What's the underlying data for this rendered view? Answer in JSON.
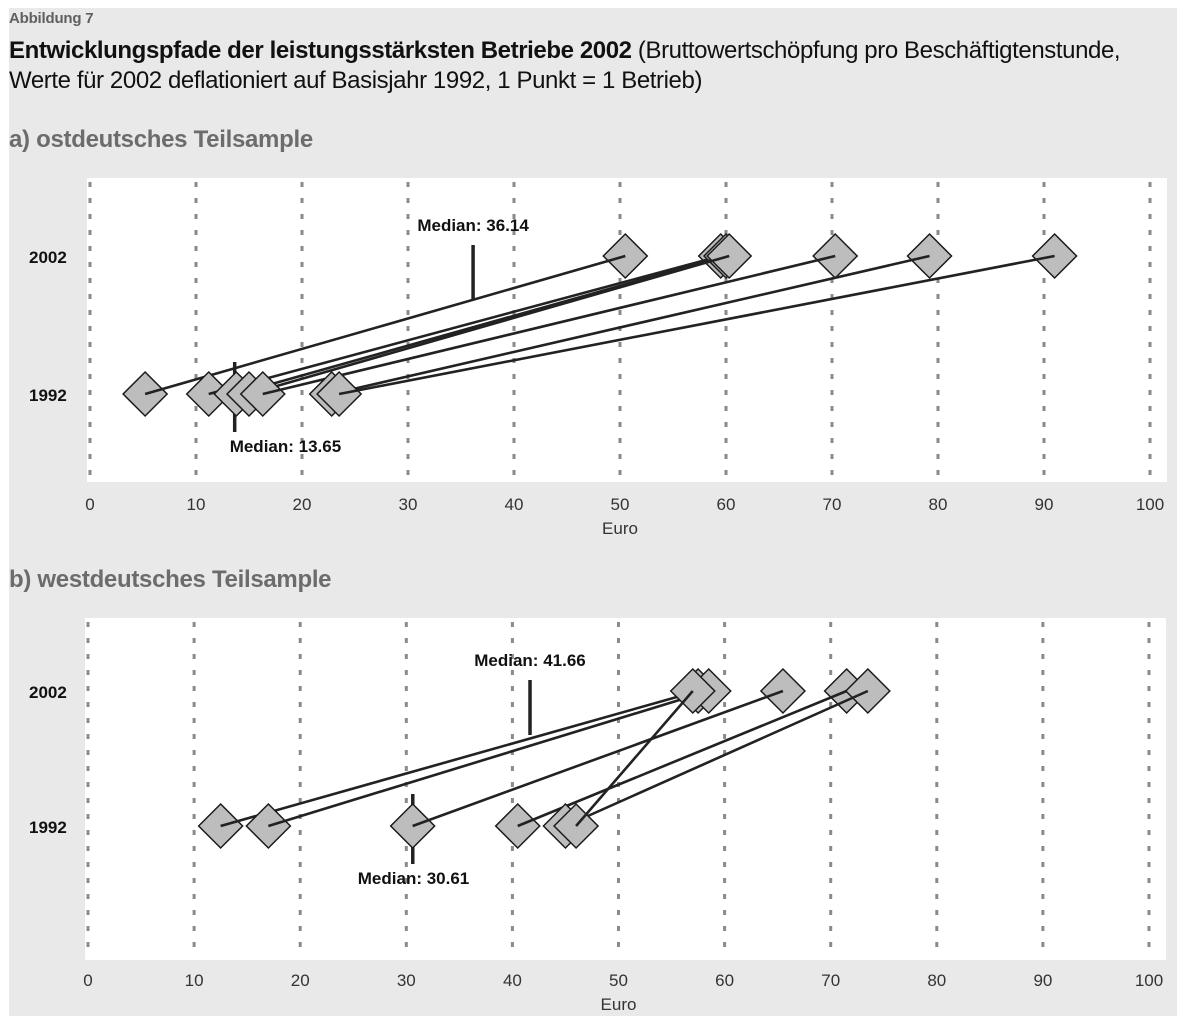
{
  "figure_label": "Abbildung 7",
  "title_bold": "Entwicklungspfade der leistungsstärksten Betriebe 2002",
  "title_rest": " (Bruttowertschöpfung pro Beschäftigtenstunde, Werte für 2002 deflationiert auf Basisjahr 1992, 1 Punkt = 1 Betrieb)",
  "colors": {
    "figure_background": "#e9e9e9",
    "plot_background": "#ffffff",
    "marker_fill": "#bdbdbd",
    "line": "#222222",
    "grid": "#8a8a8a",
    "panel_title": "#6c6c6c"
  },
  "chart_data": [
    {
      "type": "scatter",
      "panel_title": "a) ostdeutsches Teilsample",
      "xlabel": "Euro",
      "xlim": [
        0,
        100
      ],
      "xticks": [
        "0",
        "10",
        "20",
        "30",
        "40",
        "50",
        "60",
        "70",
        "80",
        "90",
        "100"
      ],
      "grid": "vertical dashed",
      "categories": [
        "2002",
        "1992"
      ],
      "medians": [
        {
          "label": "Median: 36.14",
          "value": 36.14,
          "year": "2002"
        },
        {
          "label": "Median: 13.65",
          "value": 13.65,
          "year": "1992"
        }
      ],
      "firms": [
        {
          "y1992": 5.2,
          "y2002": 50.5
        },
        {
          "y1992": 11.2,
          "y2002": 59.5
        },
        {
          "y1992": 13.8,
          "y2002": 60.0
        },
        {
          "y1992": 15.0,
          "y2002": 60.3
        },
        {
          "y1992": 16.3,
          "y2002": 70.3
        },
        {
          "y1992": 22.8,
          "y2002": 79.2
        },
        {
          "y1992": 23.5,
          "y2002": 91.0
        }
      ]
    },
    {
      "type": "scatter",
      "panel_title": "b) westdeutsches Teilsample",
      "xlabel": "Euro",
      "xlim": [
        0,
        100
      ],
      "xticks": [
        "0",
        "10",
        "20",
        "30",
        "40",
        "50",
        "60",
        "70",
        "80",
        "90",
        "100"
      ],
      "grid": "vertical dashed",
      "categories": [
        "2002",
        "1992"
      ],
      "medians": [
        {
          "label": "Median: 41.66",
          "value": 41.66,
          "year": "2002"
        },
        {
          "label": "Median: 30.61",
          "value": 30.61,
          "year": "1992"
        }
      ],
      "firms": [
        {
          "y1992": 12.5,
          "y2002": 57.5
        },
        {
          "y1992": 17.0,
          "y2002": 58.5
        },
        {
          "y1992": 30.6,
          "y2002": 65.5
        },
        {
          "y1992": 40.5,
          "y2002": 71.5
        },
        {
          "y1992": 45.0,
          "y2002": 73.5
        },
        {
          "y1992": 46.0,
          "y2002": 57.0
        }
      ]
    }
  ]
}
